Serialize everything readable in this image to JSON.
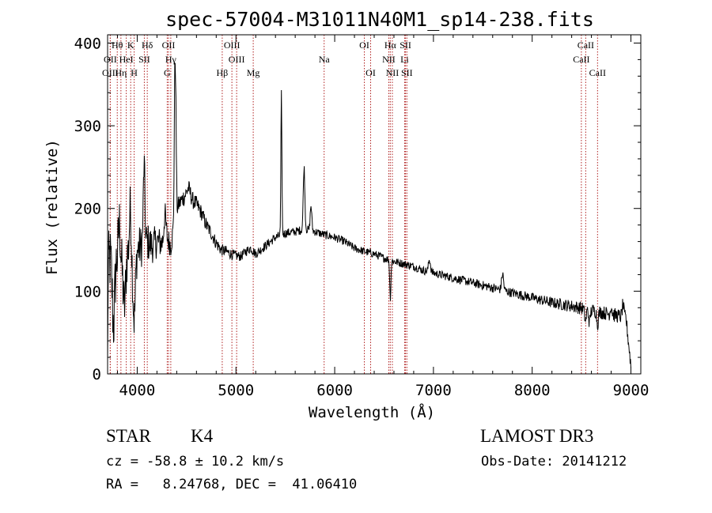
{
  "chart_data": {
    "type": "line",
    "title": "spec-57004-M31011N40M1_sp14-238.fits",
    "xlabel": "Wavelength (Å)",
    "ylabel": "Flux (relative)",
    "xlim": [
      3700,
      9100
    ],
    "ylim": [
      0,
      410
    ],
    "x_ticks": [
      4000,
      5000,
      6000,
      7000,
      8000,
      9000
    ],
    "y_ticks": [
      0,
      100,
      200,
      300,
      400
    ],
    "x_tick_labels": [
      "4000",
      "5000",
      "6000",
      "7000",
      "8000",
      "9000"
    ],
    "y_tick_labels": [
      "0",
      "100",
      "200",
      "300",
      "400"
    ],
    "grid": false,
    "legend": "none",
    "series": [
      {
        "name": "flux",
        "continuum_points": [
          [
            3700,
            5
          ],
          [
            3705,
            120
          ],
          [
            3720,
            140
          ],
          [
            3760,
            130
          ],
          [
            3800,
            140
          ],
          [
            3850,
            130
          ],
          [
            3900,
            145
          ],
          [
            3950,
            135
          ],
          [
            4000,
            150
          ],
          [
            4050,
            155
          ],
          [
            4100,
            160
          ],
          [
            4150,
            155
          ],
          [
            4200,
            160
          ],
          [
            4250,
            158
          ],
          [
            4300,
            165
          ],
          [
            4340,
            155
          ],
          [
            4380,
            185
          ],
          [
            4420,
            205
          ],
          [
            4480,
            215
          ],
          [
            4520,
            225
          ],
          [
            4560,
            210
          ],
          [
            4600,
            205
          ],
          [
            4650,
            195
          ],
          [
            4700,
            180
          ],
          [
            4750,
            170
          ],
          [
            4800,
            158
          ],
          [
            4850,
            150
          ],
          [
            4900,
            148
          ],
          [
            4950,
            145
          ],
          [
            5000,
            143
          ],
          [
            5050,
            142
          ],
          [
            5100,
            148
          ],
          [
            5150,
            152
          ],
          [
            5200,
            145
          ],
          [
            5300,
            155
          ],
          [
            5400,
            165
          ],
          [
            5500,
            170
          ],
          [
            5600,
            172
          ],
          [
            5700,
            175
          ],
          [
            5800,
            172
          ],
          [
            5900,
            168
          ],
          [
            6000,
            165
          ],
          [
            6100,
            160
          ],
          [
            6200,
            152
          ],
          [
            6300,
            148
          ],
          [
            6400,
            145
          ],
          [
            6500,
            140
          ],
          [
            6600,
            136
          ],
          [
            6700,
            133
          ],
          [
            6800,
            130
          ],
          [
            6900,
            125
          ],
          [
            7000,
            122
          ],
          [
            7200,
            116
          ],
          [
            7400,
            110
          ],
          [
            7600,
            104
          ],
          [
            7800,
            98
          ],
          [
            8000,
            92
          ],
          [
            8200,
            86
          ],
          [
            8400,
            82
          ],
          [
            8600,
            77
          ],
          [
            8800,
            72
          ],
          [
            8950,
            68
          ],
          [
            9000,
            10
          ]
        ],
        "features": [
          [
            3760,
            -70,
            12
          ],
          [
            3820,
            45,
            10
          ],
          [
            3870,
            -55,
            12
          ],
          [
            3930,
            60,
            10
          ],
          [
            3970,
            -75,
            12
          ],
          [
            4070,
            95,
            8
          ],
          [
            4280,
            30,
            10
          ],
          [
            4380,
            150,
            6
          ],
          [
            4390,
            120,
            6
          ],
          [
            5460,
            170,
            5
          ],
          [
            5690,
            75,
            8
          ],
          [
            5760,
            30,
            8
          ],
          [
            6563,
            -45,
            6
          ],
          [
            6960,
            15,
            10
          ],
          [
            7700,
            20,
            10
          ],
          [
            8540,
            -15,
            8
          ],
          [
            8580,
            -15,
            8
          ],
          [
            8662,
            -15,
            8
          ],
          [
            8800,
            10,
            8
          ],
          [
            8920,
            15,
            8
          ]
        ],
        "noise": [
          [
            3700,
            45
          ],
          [
            4000,
            28
          ],
          [
            4400,
            12
          ],
          [
            5000,
            6
          ],
          [
            6000,
            5
          ],
          [
            7000,
            5
          ],
          [
            8000,
            6
          ],
          [
            8500,
            8
          ],
          [
            9000,
            9
          ]
        ]
      }
    ],
    "line_markers": [
      {
        "label": "Hθ",
        "x": 3798,
        "row": 0
      },
      {
        "label": "OII",
        "x": 3727,
        "row": 1
      },
      {
        "label": "OIII",
        "x": 3727,
        "row": 2
      },
      {
        "label": "HeI",
        "x": 3889,
        "row": 1
      },
      {
        "label": "Hη",
        "x": 3835,
        "row": 2
      },
      {
        "label": "K",
        "x": 3934,
        "row": 0
      },
      {
        "label": "H",
        "x": 3969,
        "row": 2
      },
      {
        "label": "Hδ",
        "x": 4102,
        "row": 0
      },
      {
        "label": "SII",
        "x": 4072,
        "row": 1
      },
      {
        "label": "OII",
        "x": 4317,
        "row": 0
      },
      {
        "label": "Hγ",
        "x": 4340,
        "row": 1
      },
      {
        "label": "G",
        "x": 4304,
        "row": 2
      },
      {
        "label": "Hβ",
        "x": 4861,
        "row": 2
      },
      {
        "label": "OIII",
        "x": 4959,
        "row": 0
      },
      {
        "label": "OIII",
        "x": 5007,
        "row": 1
      },
      {
        "label": "Mg",
        "x": 5175,
        "row": 2
      },
      {
        "label": "Na",
        "x": 5893,
        "row": 1
      },
      {
        "label": "OI",
        "x": 6300,
        "row": 0
      },
      {
        "label": "OI",
        "x": 6364,
        "row": 2
      },
      {
        "label": "Hα",
        "x": 6563,
        "row": 0
      },
      {
        "label": "NII",
        "x": 6548,
        "row": 1
      },
      {
        "label": "NII",
        "x": 6584,
        "row": 2
      },
      {
        "label": "SII",
        "x": 6717,
        "row": 0
      },
      {
        "label": "Li",
        "x": 6708,
        "row": 1
      },
      {
        "label": "SII",
        "x": 6731,
        "row": 2
      },
      {
        "label": "CaII",
        "x": 8542,
        "row": 0
      },
      {
        "label": "CaII",
        "x": 8498,
        "row": 1
      },
      {
        "label": "CaII",
        "x": 8662,
        "row": 2
      }
    ],
    "marker_color": "#b02020"
  },
  "info": {
    "class_label": "STAR",
    "subclass": "K4",
    "redshift": "cz = -58.8 ± 10.2 km/s",
    "coords": "RA =   8.24768, DEC =  41.06410",
    "survey": "LAMOST DR3",
    "obs_date": "Obs-Date: 20141212"
  }
}
